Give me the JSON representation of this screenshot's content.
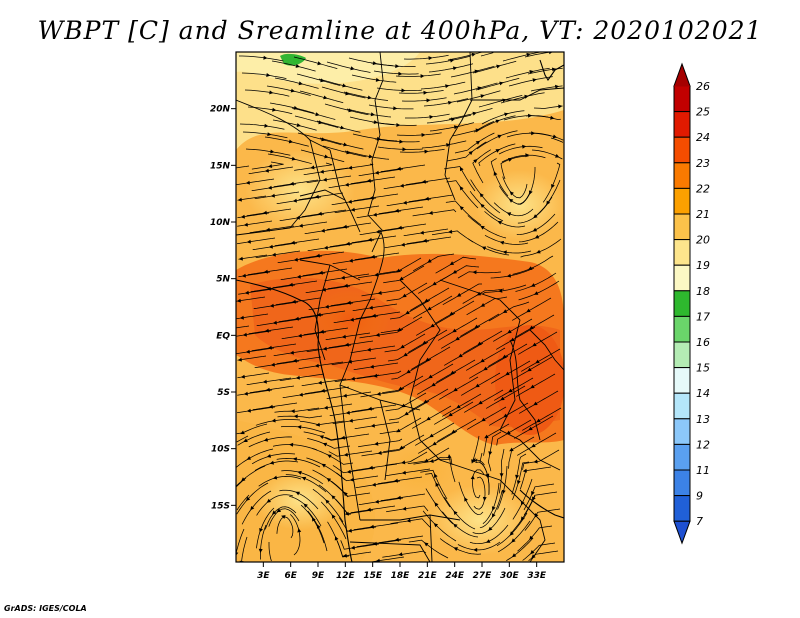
{
  "title": "WBPT [C] and Sreamline at 400hPa, VT: 2020102021",
  "credit": "GrADS: IGES/COLA",
  "map": {
    "lat_range": [
      -20,
      25
    ],
    "lon_range": [
      0,
      36
    ],
    "lat_ticks": [
      {
        "value": 20,
        "label": "20N"
      },
      {
        "value": 15,
        "label": "15N"
      },
      {
        "value": 10,
        "label": "10N"
      },
      {
        "value": 5,
        "label": "5N"
      },
      {
        "value": 0,
        "label": "EQ"
      },
      {
        "value": -5,
        "label": "5S"
      },
      {
        "value": -10,
        "label": "10S"
      },
      {
        "value": -15,
        "label": "15S"
      }
    ],
    "lon_ticks": [
      {
        "value": 3,
        "label": "3E"
      },
      {
        "value": 6,
        "label": "6E"
      },
      {
        "value": 9,
        "label": "9E"
      },
      {
        "value": 12,
        "label": "12E"
      },
      {
        "value": 15,
        "label": "15E"
      },
      {
        "value": 18,
        "label": "18E"
      },
      {
        "value": 21,
        "label": "21E"
      },
      {
        "value": 24,
        "label": "24E"
      },
      {
        "value": 27,
        "label": "27E"
      },
      {
        "value": 30,
        "label": "30E"
      },
      {
        "value": 33,
        "label": "33E"
      }
    ]
  },
  "colorbar": {
    "levels": [
      {
        "label": "26",
        "color": "#a50000"
      },
      {
        "label": "25",
        "color": "#c10000"
      },
      {
        "label": "24",
        "color": "#e11a00"
      },
      {
        "label": "23",
        "color": "#f54d00"
      },
      {
        "label": "22",
        "color": "#fa7a00"
      },
      {
        "label": "21",
        "color": "#fca000"
      },
      {
        "label": "20",
        "color": "#fcc24a"
      },
      {
        "label": "19",
        "color": "#fde58c"
      },
      {
        "label": "18",
        "color": "#fcf8c4"
      },
      {
        "label": "17",
        "color": "#2eb82e"
      },
      {
        "label": "16",
        "color": "#6ad56a"
      },
      {
        "label": "15",
        "color": "#b4ecb4"
      },
      {
        "label": "14",
        "color": "#e6fafa"
      },
      {
        "label": "13",
        "color": "#b4e6fa"
      },
      {
        "label": "12",
        "color": "#8cc8fa"
      },
      {
        "label": "11",
        "color": "#5aa0f0"
      },
      {
        "label": "9",
        "color": "#3c82e6"
      },
      {
        "label": "7",
        "color": "#2060d8"
      }
    ],
    "bottom_color": "#1e50d2",
    "top_color": "#a50000"
  }
}
